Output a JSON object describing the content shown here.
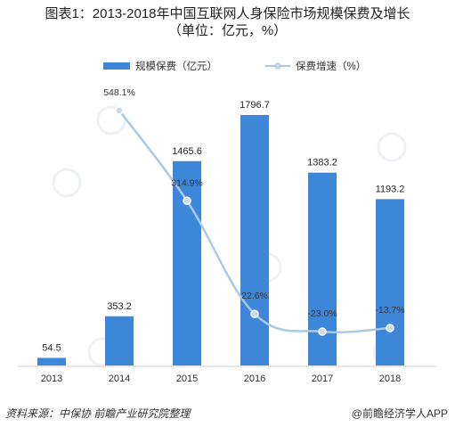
{
  "header": {
    "title_line1": "图表1：2013-2018年中国互联网人身保险市场规模保费及增长",
    "title_line2": "（单位：亿元，%）"
  },
  "footer": {
    "source": "资料来源：中保协 前瞻产业研究院整理",
    "credit": "@前瞻经济学人APP"
  },
  "colors": {
    "bar": "#3d86d8",
    "line": "#a9c9e6",
    "marker": "#c7dbee"
  },
  "chart_data": {
    "type": "bar+line",
    "categories": [
      "2013",
      "2014",
      "2015",
      "2016",
      "2017",
      "2018"
    ],
    "series": [
      {
        "name": "规模保费（亿元）",
        "type": "bar",
        "values": [
          54.5,
          353.2,
          1465.6,
          1796.7,
          1383.2,
          1193.2
        ],
        "labels": [
          "54.5",
          "353.2",
          "1465.6",
          "1796.7",
          "1383.2",
          "1193.2"
        ]
      },
      {
        "name": "保费增速（%）",
        "type": "line",
        "values": [
          null,
          548.1,
          314.9,
          22.6,
          -23.0,
          -13.7
        ],
        "labels": [
          "",
          "548.1%",
          "314.9%",
          "22.6%",
          "-23.0%",
          "-13.7%"
        ]
      }
    ],
    "legend_position": "top-center",
    "grid": false
  }
}
